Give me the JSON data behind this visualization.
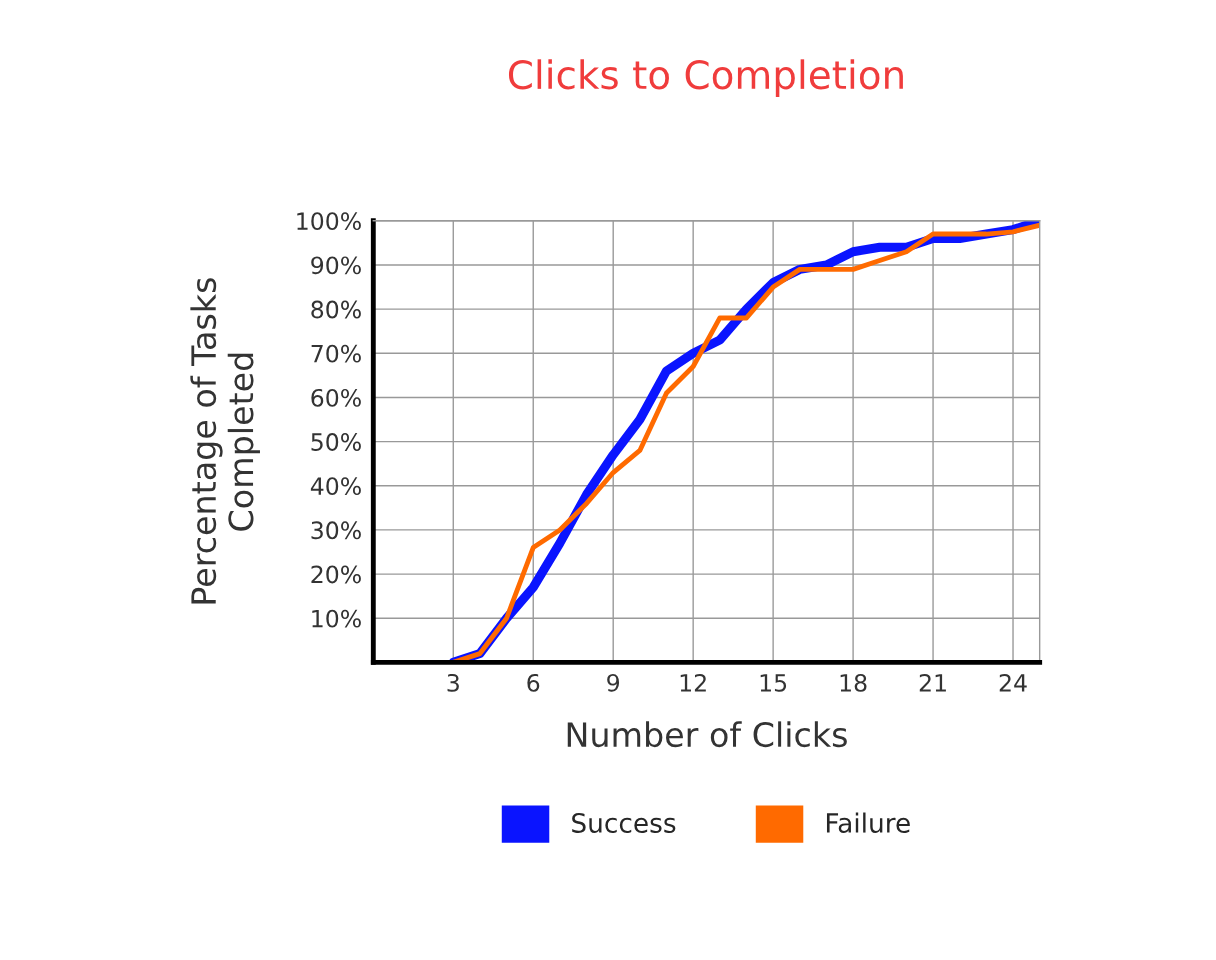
{
  "chart_data": {
    "type": "line",
    "title": "Clicks to Completion",
    "xlabel": "Number of Clicks",
    "ylabel": "Percentage of Tasks\nCompleted",
    "x": [
      3,
      4,
      5,
      6,
      7,
      8,
      9,
      10,
      11,
      12,
      13,
      14,
      15,
      16,
      17,
      18,
      19,
      20,
      21,
      22,
      23,
      24,
      25
    ],
    "series": [
      {
        "name": "Success",
        "color": "#0a14ff",
        "values": [
          0,
          2,
          10,
          17,
          27,
          38,
          47,
          55,
          66,
          70,
          73,
          80,
          86,
          89,
          90,
          93,
          94,
          94,
          96,
          96,
          97,
          98,
          100
        ]
      },
      {
        "name": "Failure",
        "color": "#ff6a00",
        "values": [
          0,
          2,
          10,
          26,
          30,
          36,
          43,
          48,
          61,
          67,
          78,
          78,
          85,
          89,
          89,
          89,
          91,
          93,
          97,
          97,
          97,
          97.5,
          99
        ]
      }
    ],
    "xlim": [
      0,
      25
    ],
    "xticks": [
      3,
      6,
      9,
      12,
      15,
      18,
      21,
      24
    ],
    "ylim": [
      0,
      100
    ],
    "yticks": [
      {
        "value": 10,
        "label": "10%"
      },
      {
        "value": 20,
        "label": "20%"
      },
      {
        "value": 30,
        "label": "30%"
      },
      {
        "value": 40,
        "label": "40%"
      },
      {
        "value": 50,
        "label": "50%"
      },
      {
        "value": 60,
        "label": "60%"
      },
      {
        "value": 70,
        "label": "70%"
      },
      {
        "value": 80,
        "label": "80%"
      },
      {
        "value": 90,
        "label": "90%"
      },
      {
        "value": 100,
        "label": "100%"
      }
    ],
    "grid": true,
    "legend": "bottom",
    "marker": "none",
    "line_style": "solid"
  }
}
